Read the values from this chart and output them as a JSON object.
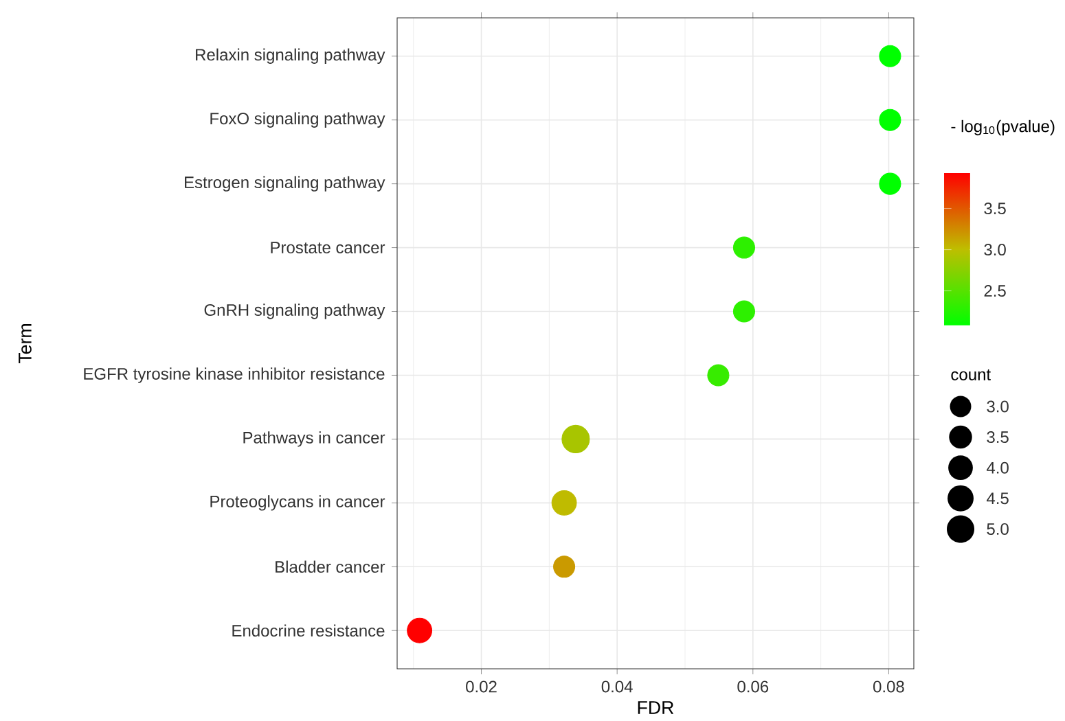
{
  "chart_data": {
    "type": "bubble",
    "orientation": "horizontal",
    "categories": [
      "Relaxin signaling pathway",
      "FoxO signaling pathway",
      "Estrogen signaling pathway",
      "Prostate cancer",
      "GnRH signaling pathway",
      "EGFR tyrosine kinase inhibitor resistance",
      "Pathways in cancer",
      "Proteoglycans in cancer",
      "Bladder cancer",
      "Endocrine resistance"
    ],
    "values": [
      0.0802,
      0.0802,
      0.0802,
      0.0587,
      0.0587,
      0.0549,
      0.0339,
      0.0322,
      0.0322,
      0.0109
    ],
    "sizes": [
      3,
      3,
      3,
      3,
      3,
      3,
      5,
      4,
      3,
      4
    ],
    "cvalues": [
      2.08,
      2.08,
      2.08,
      2.3,
      2.3,
      2.35,
      2.9,
      3.02,
      3.18,
      3.93
    ],
    "xlim": [
      0.0076,
      0.0837
    ],
    "xticks": [
      0.02,
      0.04,
      0.06,
      0.08
    ],
    "clim": [
      2.08,
      3.93
    ],
    "cticks": [
      2.5,
      {
        "value": 3,
        "label": "3.0"
      },
      3.5
    ],
    "size_legend": [
      {
        "value": 3,
        "label": "3.0"
      },
      3.5,
      {
        "value": 4,
        "label": "4.0"
      },
      4.5,
      {
        "value": 5,
        "label": "5.0"
      }
    ],
    "xlabel": "FDR",
    "ylabel": "Term",
    "clabel": "- log$_{10}$(pvalue)",
    "legend_title": "count",
    "grid": true
  }
}
